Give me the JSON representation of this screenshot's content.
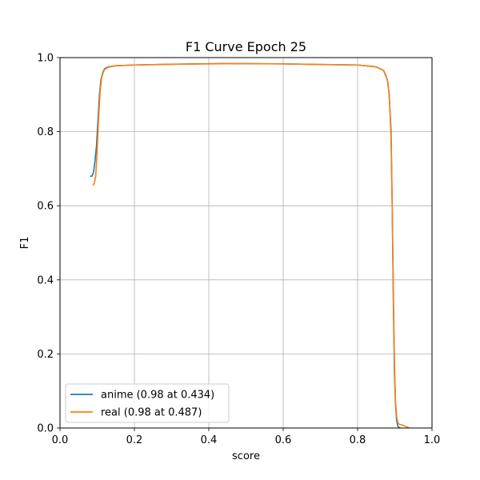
{
  "chart_data": {
    "type": "line",
    "title": "F1 Curve Epoch 25",
    "xlabel": "score",
    "ylabel": "F1",
    "xlim": [
      0.0,
      1.0
    ],
    "ylim": [
      0.0,
      1.0
    ],
    "xticks": [
      "0.0",
      "0.2",
      "0.4",
      "0.6",
      "0.8",
      "1.0"
    ],
    "yticks": [
      "0.0",
      "0.2",
      "0.4",
      "0.6",
      "0.8",
      "1.0"
    ],
    "grid": true,
    "legend_position": "lower-left",
    "series": [
      {
        "name": "anime (0.98 at 0.434)",
        "color": "#1f77b4",
        "x": [
          0.081,
          0.086,
          0.09,
          0.094,
          0.098,
          0.102,
          0.106,
          0.11,
          0.115,
          0.12,
          0.13,
          0.15,
          0.2,
          0.3,
          0.434,
          0.6,
          0.8,
          0.85,
          0.87,
          0.88,
          0.885,
          0.89,
          0.893,
          0.896,
          0.899,
          0.902,
          0.905,
          0.908,
          0.911,
          0.915
        ],
        "y": [
          0.68,
          0.68,
          0.69,
          0.72,
          0.76,
          0.83,
          0.9,
          0.94,
          0.96,
          0.97,
          0.975,
          0.978,
          0.98,
          0.982,
          0.984,
          0.983,
          0.98,
          0.975,
          0.965,
          0.94,
          0.9,
          0.8,
          0.6,
          0.35,
          0.15,
          0.06,
          0.02,
          0.005,
          0.002,
          0.0
        ]
      },
      {
        "name": "real (0.98 at 0.487)",
        "color": "#ff7f0e",
        "x": [
          0.088,
          0.092,
          0.096,
          0.1,
          0.104,
          0.108,
          0.112,
          0.116,
          0.12,
          0.13,
          0.15,
          0.2,
          0.3,
          0.487,
          0.6,
          0.8,
          0.85,
          0.87,
          0.877,
          0.882,
          0.886,
          0.89,
          0.893,
          0.896,
          0.899,
          0.902,
          0.905,
          0.908,
          0.912,
          0.92,
          0.93,
          0.938
        ],
        "y": [
          0.655,
          0.66,
          0.68,
          0.75,
          0.84,
          0.91,
          0.945,
          0.96,
          0.968,
          0.974,
          0.978,
          0.98,
          0.982,
          0.984,
          0.983,
          0.98,
          0.975,
          0.965,
          0.95,
          0.93,
          0.88,
          0.78,
          0.6,
          0.38,
          0.18,
          0.07,
          0.03,
          0.015,
          0.01,
          0.008,
          0.004,
          0.0
        ]
      }
    ]
  }
}
